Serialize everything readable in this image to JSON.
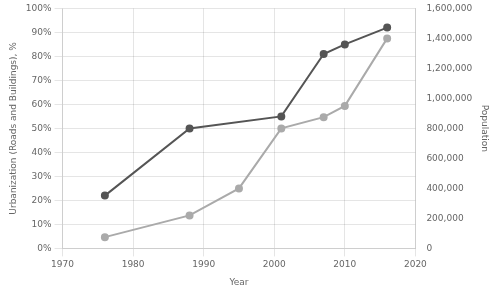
{
  "chart_data": {
    "type": "line",
    "xlabel": "Year",
    "ylabel": "Urbanization (Roads and Buildings), %",
    "y2label": "Population",
    "series": [
      {
        "x": [
          1976,
          1988,
          2001,
          2007,
          2010,
          2016
        ],
        "values": [
          0.22,
          0.5,
          0.55,
          0.81,
          0.85,
          0.92
        ],
        "color": "#555555",
        "marker": "circle"
      },
      {
        "x": [
          1976,
          1988,
          1995,
          2001,
          2007,
          2010,
          2016
        ],
        "values": [
          75000,
          220000,
          400000,
          800000,
          875000,
          950000,
          1400000
        ],
        "color": "#aaaaaa",
        "marker": "circle",
        "axis": "y2"
      }
    ],
    "xlim": [
      1970,
      2020
    ],
    "xticks": [
      1970,
      1980,
      1990,
      2000,
      2010,
      2020
    ],
    "ylim": [
      0.0,
      1.0
    ],
    "yticks": [
      {
        "value": 0.0,
        "label": "0%"
      },
      {
        "value": 0.1,
        "label": "10%"
      },
      {
        "value": 0.2,
        "label": "20%"
      },
      {
        "value": 0.3,
        "label": "30%"
      },
      {
        "value": 0.4,
        "label": "40%"
      },
      {
        "value": 0.5,
        "label": "50%"
      },
      {
        "value": 0.6,
        "label": "60%"
      },
      {
        "value": 0.7,
        "label": "70%"
      },
      {
        "value": 0.8,
        "label": "80%"
      },
      {
        "value": 0.9,
        "label": "90%"
      },
      {
        "value": 1.0,
        "label": "100%"
      }
    ],
    "y2lim": [
      0,
      1600000
    ],
    "y2ticks": [
      0,
      {
        "value": 200000,
        "label": "200,000"
      },
      {
        "value": 400000,
        "label": "400,000"
      },
      {
        "value": 600000,
        "label": "600,000"
      },
      {
        "value": 800000,
        "label": "800,000"
      },
      {
        "value": 1000000,
        "label": "1,000,000"
      },
      {
        "value": 1200000,
        "label": "1,200,000"
      },
      {
        "value": 1400000,
        "label": "1,400,000"
      },
      {
        "value": 1600000,
        "label": "1,600,000"
      }
    ],
    "grid": true
  }
}
